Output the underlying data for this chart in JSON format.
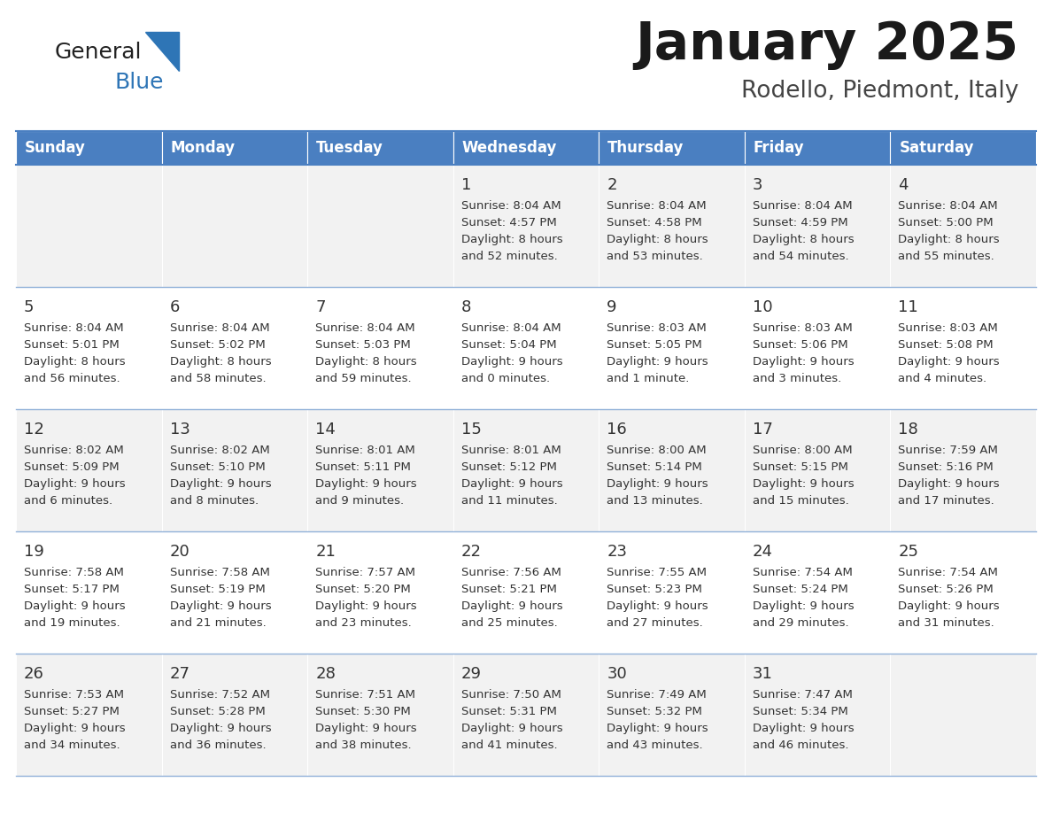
{
  "title": "January 2025",
  "subtitle": "Rodello, Piedmont, Italy",
  "header_color": "#4a7fc1",
  "header_text_color": "#FFFFFF",
  "day_names": [
    "Sunday",
    "Monday",
    "Tuesday",
    "Wednesday",
    "Thursday",
    "Friday",
    "Saturday"
  ],
  "row_colors": [
    "#f2f2f2",
    "#ffffff"
  ],
  "border_color": "#4a7fc1",
  "text_color": "#333333",
  "logo_black": "#222222",
  "logo_blue": "#2E75B6",
  "days": [
    {
      "day": 1,
      "col": 3,
      "row": 0,
      "sunrise": "8:04 AM",
      "sunset": "4:57 PM",
      "daylight_line1": "Daylight: 8 hours",
      "daylight_line2": "and 52 minutes."
    },
    {
      "day": 2,
      "col": 4,
      "row": 0,
      "sunrise": "8:04 AM",
      "sunset": "4:58 PM",
      "daylight_line1": "Daylight: 8 hours",
      "daylight_line2": "and 53 minutes."
    },
    {
      "day": 3,
      "col": 5,
      "row": 0,
      "sunrise": "8:04 AM",
      "sunset": "4:59 PM",
      "daylight_line1": "Daylight: 8 hours",
      "daylight_line2": "and 54 minutes."
    },
    {
      "day": 4,
      "col": 6,
      "row": 0,
      "sunrise": "8:04 AM",
      "sunset": "5:00 PM",
      "daylight_line1": "Daylight: 8 hours",
      "daylight_line2": "and 55 minutes."
    },
    {
      "day": 5,
      "col": 0,
      "row": 1,
      "sunrise": "8:04 AM",
      "sunset": "5:01 PM",
      "daylight_line1": "Daylight: 8 hours",
      "daylight_line2": "and 56 minutes."
    },
    {
      "day": 6,
      "col": 1,
      "row": 1,
      "sunrise": "8:04 AM",
      "sunset": "5:02 PM",
      "daylight_line1": "Daylight: 8 hours",
      "daylight_line2": "and 58 minutes."
    },
    {
      "day": 7,
      "col": 2,
      "row": 1,
      "sunrise": "8:04 AM",
      "sunset": "5:03 PM",
      "daylight_line1": "Daylight: 8 hours",
      "daylight_line2": "and 59 minutes."
    },
    {
      "day": 8,
      "col": 3,
      "row": 1,
      "sunrise": "8:04 AM",
      "sunset": "5:04 PM",
      "daylight_line1": "Daylight: 9 hours",
      "daylight_line2": "and 0 minutes."
    },
    {
      "day": 9,
      "col": 4,
      "row": 1,
      "sunrise": "8:03 AM",
      "sunset": "5:05 PM",
      "daylight_line1": "Daylight: 9 hours",
      "daylight_line2": "and 1 minute."
    },
    {
      "day": 10,
      "col": 5,
      "row": 1,
      "sunrise": "8:03 AM",
      "sunset": "5:06 PM",
      "daylight_line1": "Daylight: 9 hours",
      "daylight_line2": "and 3 minutes."
    },
    {
      "day": 11,
      "col": 6,
      "row": 1,
      "sunrise": "8:03 AM",
      "sunset": "5:08 PM",
      "daylight_line1": "Daylight: 9 hours",
      "daylight_line2": "and 4 minutes."
    },
    {
      "day": 12,
      "col": 0,
      "row": 2,
      "sunrise": "8:02 AM",
      "sunset": "5:09 PM",
      "daylight_line1": "Daylight: 9 hours",
      "daylight_line2": "and 6 minutes."
    },
    {
      "day": 13,
      "col": 1,
      "row": 2,
      "sunrise": "8:02 AM",
      "sunset": "5:10 PM",
      "daylight_line1": "Daylight: 9 hours",
      "daylight_line2": "and 8 minutes."
    },
    {
      "day": 14,
      "col": 2,
      "row": 2,
      "sunrise": "8:01 AM",
      "sunset": "5:11 PM",
      "daylight_line1": "Daylight: 9 hours",
      "daylight_line2": "and 9 minutes."
    },
    {
      "day": 15,
      "col": 3,
      "row": 2,
      "sunrise": "8:01 AM",
      "sunset": "5:12 PM",
      "daylight_line1": "Daylight: 9 hours",
      "daylight_line2": "and 11 minutes."
    },
    {
      "day": 16,
      "col": 4,
      "row": 2,
      "sunrise": "8:00 AM",
      "sunset": "5:14 PM",
      "daylight_line1": "Daylight: 9 hours",
      "daylight_line2": "and 13 minutes."
    },
    {
      "day": 17,
      "col": 5,
      "row": 2,
      "sunrise": "8:00 AM",
      "sunset": "5:15 PM",
      "daylight_line1": "Daylight: 9 hours",
      "daylight_line2": "and 15 minutes."
    },
    {
      "day": 18,
      "col": 6,
      "row": 2,
      "sunrise": "7:59 AM",
      "sunset": "5:16 PM",
      "daylight_line1": "Daylight: 9 hours",
      "daylight_line2": "and 17 minutes."
    },
    {
      "day": 19,
      "col": 0,
      "row": 3,
      "sunrise": "7:58 AM",
      "sunset": "5:17 PM",
      "daylight_line1": "Daylight: 9 hours",
      "daylight_line2": "and 19 minutes."
    },
    {
      "day": 20,
      "col": 1,
      "row": 3,
      "sunrise": "7:58 AM",
      "sunset": "5:19 PM",
      "daylight_line1": "Daylight: 9 hours",
      "daylight_line2": "and 21 minutes."
    },
    {
      "day": 21,
      "col": 2,
      "row": 3,
      "sunrise": "7:57 AM",
      "sunset": "5:20 PM",
      "daylight_line1": "Daylight: 9 hours",
      "daylight_line2": "and 23 minutes."
    },
    {
      "day": 22,
      "col": 3,
      "row": 3,
      "sunrise": "7:56 AM",
      "sunset": "5:21 PM",
      "daylight_line1": "Daylight: 9 hours",
      "daylight_line2": "and 25 minutes."
    },
    {
      "day": 23,
      "col": 4,
      "row": 3,
      "sunrise": "7:55 AM",
      "sunset": "5:23 PM",
      "daylight_line1": "Daylight: 9 hours",
      "daylight_line2": "and 27 minutes."
    },
    {
      "day": 24,
      "col": 5,
      "row": 3,
      "sunrise": "7:54 AM",
      "sunset": "5:24 PM",
      "daylight_line1": "Daylight: 9 hours",
      "daylight_line2": "and 29 minutes."
    },
    {
      "day": 25,
      "col": 6,
      "row": 3,
      "sunrise": "7:54 AM",
      "sunset": "5:26 PM",
      "daylight_line1": "Daylight: 9 hours",
      "daylight_line2": "and 31 minutes."
    },
    {
      "day": 26,
      "col": 0,
      "row": 4,
      "sunrise": "7:53 AM",
      "sunset": "5:27 PM",
      "daylight_line1": "Daylight: 9 hours",
      "daylight_line2": "and 34 minutes."
    },
    {
      "day": 27,
      "col": 1,
      "row": 4,
      "sunrise": "7:52 AM",
      "sunset": "5:28 PM",
      "daylight_line1": "Daylight: 9 hours",
      "daylight_line2": "and 36 minutes."
    },
    {
      "day": 28,
      "col": 2,
      "row": 4,
      "sunrise": "7:51 AM",
      "sunset": "5:30 PM",
      "daylight_line1": "Daylight: 9 hours",
      "daylight_line2": "and 38 minutes."
    },
    {
      "day": 29,
      "col": 3,
      "row": 4,
      "sunrise": "7:50 AM",
      "sunset": "5:31 PM",
      "daylight_line1": "Daylight: 9 hours",
      "daylight_line2": "and 41 minutes."
    },
    {
      "day": 30,
      "col": 4,
      "row": 4,
      "sunrise": "7:49 AM",
      "sunset": "5:32 PM",
      "daylight_line1": "Daylight: 9 hours",
      "daylight_line2": "and 43 minutes."
    },
    {
      "day": 31,
      "col": 5,
      "row": 4,
      "sunrise": "7:47 AM",
      "sunset": "5:34 PM",
      "daylight_line1": "Daylight: 9 hours",
      "daylight_line2": "and 46 minutes."
    }
  ]
}
